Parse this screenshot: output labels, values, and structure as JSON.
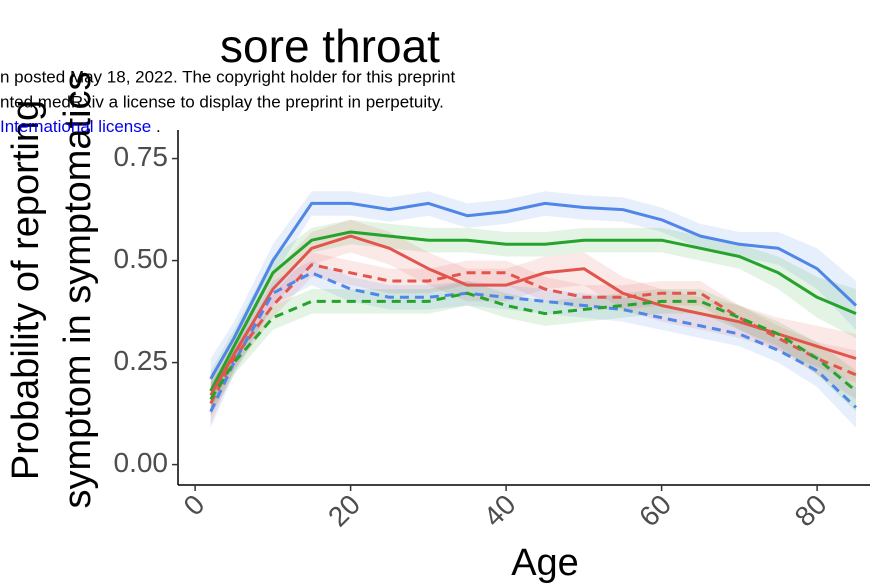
{
  "chart_data": {
    "type": "line",
    "title": "sore throat",
    "ylabel": [
      "Probability of reporting",
      "symptom in symptomatics"
    ],
    "xlabel": "Age",
    "notice": [
      "n posted May 18, 2022. The copyright holder for this preprint",
      "nted medRxiv a license to display the preprint in perpetuity."
    ],
    "notice_link": "International license",
    "notice_end": " .",
    "x": [
      2,
      5,
      10,
      15,
      20,
      25,
      30,
      35,
      40,
      45,
      50,
      55,
      60,
      65,
      70,
      75,
      80,
      85
    ],
    "xlim": [
      -2.2,
      86.8
    ],
    "xticks": [
      0,
      20,
      40,
      60,
      80
    ],
    "ylim": [
      -0.05,
      0.82
    ],
    "yticks": [
      {
        "value": 0,
        "label": "0.00"
      },
      0.25,
      {
        "value": 0.5,
        "label": "0.50"
      },
      0.75
    ],
    "grid": false,
    "series": [
      {
        "color": "#4f86e8",
        "dash": false,
        "values": [
          0.21,
          0.31,
          0.5,
          0.64,
          0.64,
          0.625,
          0.64,
          0.61,
          0.62,
          0.64,
          0.63,
          0.625,
          0.6,
          0.56,
          0.54,
          0.53,
          0.48,
          0.39
        ],
        "lower": [
          0.16,
          0.27,
          0.46,
          0.61,
          0.61,
          0.595,
          0.61,
          0.58,
          0.59,
          0.61,
          0.6,
          0.595,
          0.57,
          0.53,
          0.51,
          0.49,
          0.43,
          0.33
        ],
        "upper": [
          0.26,
          0.35,
          0.54,
          0.67,
          0.67,
          0.655,
          0.67,
          0.64,
          0.65,
          0.67,
          0.66,
          0.655,
          0.63,
          0.59,
          0.57,
          0.57,
          0.53,
          0.45
        ]
      },
      {
        "color": "#25a32b",
        "dash": false,
        "values": [
          0.18,
          0.29,
          0.47,
          0.55,
          0.57,
          0.56,
          0.55,
          0.55,
          0.54,
          0.54,
          0.55,
          0.55,
          0.55,
          0.53,
          0.51,
          0.47,
          0.41,
          0.37
        ],
        "lower": [
          0.13,
          0.25,
          0.43,
          0.52,
          0.54,
          0.53,
          0.52,
          0.52,
          0.51,
          0.51,
          0.52,
          0.52,
          0.52,
          0.5,
          0.48,
          0.43,
          0.36,
          0.31
        ],
        "upper": [
          0.23,
          0.33,
          0.51,
          0.58,
          0.6,
          0.59,
          0.58,
          0.58,
          0.57,
          0.57,
          0.58,
          0.58,
          0.58,
          0.56,
          0.54,
          0.51,
          0.46,
          0.43
        ]
      },
      {
        "color": "#e2554d",
        "dash": false,
        "values": [
          0.17,
          0.27,
          0.43,
          0.53,
          0.56,
          0.53,
          0.48,
          0.44,
          0.44,
          0.47,
          0.48,
          0.42,
          0.39,
          0.37,
          0.35,
          0.32,
          0.29,
          0.26
        ],
        "lower": [
          0.12,
          0.23,
          0.39,
          0.49,
          0.52,
          0.49,
          0.44,
          0.4,
          0.4,
          0.43,
          0.44,
          0.38,
          0.35,
          0.33,
          0.31,
          0.28,
          0.24,
          0.2
        ],
        "upper": [
          0.22,
          0.31,
          0.47,
          0.57,
          0.6,
          0.57,
          0.52,
          0.48,
          0.48,
          0.51,
          0.52,
          0.46,
          0.43,
          0.41,
          0.39,
          0.36,
          0.34,
          0.32
        ]
      },
      {
        "color": "#e2554d",
        "dash": true,
        "values": [
          0.15,
          0.26,
          0.39,
          0.49,
          0.47,
          0.45,
          0.45,
          0.47,
          0.47,
          0.43,
          0.41,
          0.41,
          0.42,
          0.42,
          0.36,
          0.31,
          0.26,
          0.22
        ],
        "lower": [
          0.1,
          0.23,
          0.36,
          0.46,
          0.44,
          0.42,
          0.42,
          0.44,
          0.44,
          0.4,
          0.38,
          0.38,
          0.39,
          0.39,
          0.33,
          0.28,
          0.22,
          0.16
        ],
        "upper": [
          0.2,
          0.29,
          0.42,
          0.52,
          0.5,
          0.48,
          0.48,
          0.5,
          0.5,
          0.46,
          0.44,
          0.44,
          0.45,
          0.45,
          0.39,
          0.34,
          0.3,
          0.28
        ]
      },
      {
        "color": "#4f86e8",
        "dash": true,
        "values": [
          0.13,
          0.25,
          0.42,
          0.47,
          0.43,
          0.41,
          0.41,
          0.42,
          0.41,
          0.4,
          0.39,
          0.38,
          0.36,
          0.34,
          0.32,
          0.28,
          0.23,
          0.14
        ],
        "lower": [
          0.09,
          0.22,
          0.39,
          0.44,
          0.4,
          0.38,
          0.38,
          0.39,
          0.38,
          0.37,
          0.36,
          0.35,
          0.33,
          0.31,
          0.29,
          0.25,
          0.19,
          0.09
        ],
        "upper": [
          0.17,
          0.28,
          0.45,
          0.5,
          0.46,
          0.44,
          0.44,
          0.45,
          0.44,
          0.43,
          0.42,
          0.41,
          0.39,
          0.37,
          0.35,
          0.31,
          0.27,
          0.19
        ]
      },
      {
        "color": "#25a32b",
        "dash": true,
        "values": [
          0.16,
          0.25,
          0.36,
          0.4,
          0.4,
          0.4,
          0.4,
          0.42,
          0.39,
          0.37,
          0.38,
          0.39,
          0.4,
          0.4,
          0.36,
          0.32,
          0.26,
          0.18
        ],
        "lower": [
          0.12,
          0.22,
          0.33,
          0.37,
          0.37,
          0.37,
          0.37,
          0.39,
          0.36,
          0.34,
          0.35,
          0.36,
          0.37,
          0.37,
          0.33,
          0.29,
          0.22,
          0.13
        ],
        "upper": [
          0.2,
          0.28,
          0.39,
          0.43,
          0.43,
          0.43,
          0.43,
          0.45,
          0.42,
          0.4,
          0.41,
          0.42,
          0.43,
          0.43,
          0.39,
          0.35,
          0.3,
          0.23
        ]
      }
    ]
  }
}
